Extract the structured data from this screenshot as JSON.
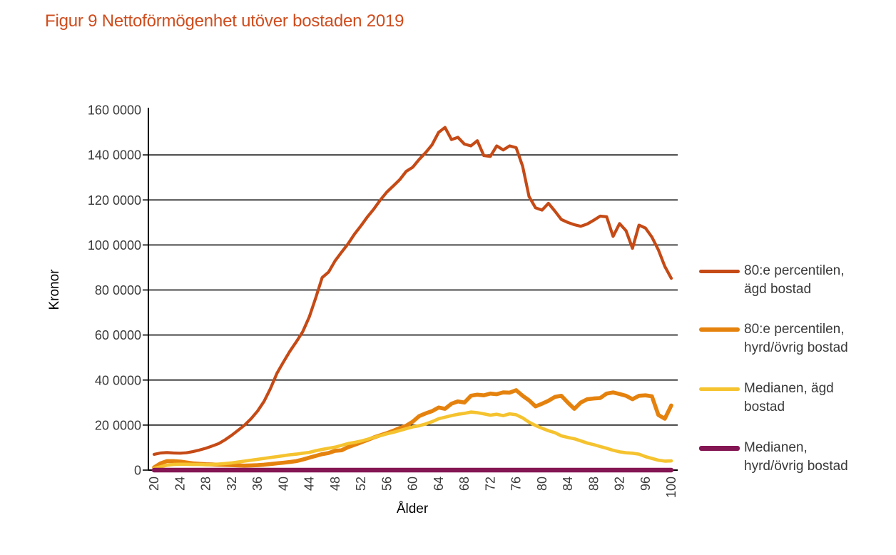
{
  "title": "Figur 9 Nettoförmögenhet utöver bostaden 2019",
  "colors": {
    "title": "#d04c1d",
    "text": "#3a3a3b",
    "axis": "#000000",
    "p80_agd": "#c54a16",
    "p80_hyrd": "#e5820e",
    "median_agd": "#f5c32f",
    "median_hyrd": "#841653"
  },
  "chart_data": {
    "type": "line",
    "title": "Figur 9 Nettoförmögenhet utöver bostaden 2019",
    "xlabel": "Ålder",
    "ylabel": "Kronor",
    "xlim": [
      20,
      100
    ],
    "ylim": [
      0,
      1600000
    ],
    "grid": "horizontal gridlines at every 200000, none at 1600000",
    "legend_position": "right",
    "x_ticks": [
      20,
      24,
      28,
      32,
      36,
      40,
      44,
      48,
      52,
      56,
      60,
      64,
      68,
      72,
      76,
      80,
      84,
      88,
      92,
      96,
      100
    ],
    "y_ticks": [
      {
        "value": 0,
        "label": "0"
      },
      {
        "value": 200000,
        "label": "20 0000"
      },
      {
        "value": 400000,
        "label": "40 0000"
      },
      {
        "value": 600000,
        "label": "60 0000"
      },
      {
        "value": 800000,
        "label": "80 0000"
      },
      {
        "value": 1000000,
        "label": "100 0000"
      },
      {
        "value": 1200000,
        "label": "120 0000"
      },
      {
        "value": 1400000,
        "label": "140 0000"
      },
      {
        "value": 1600000,
        "label": "160 0000"
      }
    ],
    "x": [
      20,
      21,
      22,
      23,
      24,
      25,
      26,
      27,
      28,
      29,
      30,
      31,
      32,
      33,
      34,
      35,
      36,
      37,
      38,
      39,
      40,
      41,
      42,
      43,
      44,
      45,
      46,
      47,
      48,
      49,
      50,
      51,
      52,
      53,
      54,
      55,
      56,
      57,
      58,
      59,
      60,
      61,
      62,
      63,
      64,
      65,
      66,
      67,
      68,
      69,
      70,
      71,
      72,
      73,
      74,
      75,
      76,
      77,
      78,
      79,
      80,
      81,
      82,
      83,
      84,
      85,
      86,
      87,
      88,
      89,
      90,
      91,
      92,
      93,
      94,
      95,
      96,
      97,
      98,
      99,
      100
    ],
    "series": [
      {
        "id": "p80-agd",
        "name": "80:e percentilen, ägd bostad",
        "legend_lines": [
          "80:e percentilen,",
          "ägd bostad"
        ],
        "color": "#c54a16",
        "width": 4.2,
        "values": [
          70000,
          76000,
          78000,
          76000,
          75000,
          77000,
          82000,
          89000,
          97000,
          107000,
          118000,
          135000,
          155000,
          177000,
          200000,
          228000,
          262000,
          305000,
          362000,
          430000,
          480000,
          528000,
          570000,
          615000,
          680000,
          765000,
          855000,
          880000,
          930000,
          968000,
          1005000,
          1048000,
          1085000,
          1125000,
          1160000,
          1200000,
          1235000,
          1262000,
          1290000,
          1327000,
          1345000,
          1380000,
          1410000,
          1445000,
          1500000,
          1522000,
          1468000,
          1478000,
          1448000,
          1440000,
          1463000,
          1397000,
          1393000,
          1440000,
          1422000,
          1440000,
          1432000,
          1350000,
          1215000,
          1165000,
          1155000,
          1185000,
          1150000,
          1113000,
          1100000,
          1090000,
          1083000,
          1093000,
          1110000,
          1128000,
          1125000,
          1038000,
          1095000,
          1063000,
          985000,
          1088000,
          1075000,
          1035000,
          978000,
          905000,
          852000
        ]
      },
      {
        "id": "p80-hyrd",
        "name": "80:e percentilen, hyrd/övrig bostad",
        "legend_lines": [
          "80:e percentilen,",
          "hyrd/övrig bostad"
        ],
        "color": "#e5820e",
        "width": 5.6,
        "values": [
          12000,
          30000,
          40000,
          40000,
          38000,
          34000,
          30000,
          28000,
          26000,
          25000,
          24000,
          23000,
          22000,
          21000,
          20000,
          21000,
          22000,
          24000,
          27000,
          30000,
          33000,
          36000,
          40000,
          47000,
          55000,
          63000,
          71000,
          76000,
          86000,
          88000,
          102000,
          112000,
          123000,
          134000,
          145000,
          155000,
          164000,
          175000,
          187000,
          197000,
          215000,
          240000,
          252000,
          262000,
          278000,
          272000,
          295000,
          305000,
          300000,
          330000,
          335000,
          332000,
          340000,
          337000,
          345000,
          344000,
          355000,
          330000,
          310000,
          283000,
          295000,
          308000,
          325000,
          330000,
          300000,
          272000,
          300000,
          315000,
          318000,
          320000,
          340000,
          345000,
          338000,
          330000,
          315000,
          330000,
          332000,
          328000,
          245000,
          228000,
          287000
        ]
      },
      {
        "id": "median-agd",
        "name": "Medianen, ägd bostad",
        "legend_lines": [
          "Medianen, ägd",
          "bostad"
        ],
        "color": "#f5c32f",
        "width": 4.6,
        "values": [
          8000,
          15000,
          22000,
          25000,
          26000,
          26000,
          25000,
          25000,
          24000,
          25000,
          27000,
          29000,
          32000,
          36000,
          40000,
          44000,
          48000,
          52000,
          56000,
          60000,
          64000,
          68000,
          71000,
          75000,
          79000,
          86000,
          92000,
          97000,
          102000,
          110000,
          118000,
          123000,
          129000,
          137000,
          145000,
          153000,
          161000,
          168000,
          176000,
          184000,
          192000,
          197000,
          205000,
          215000,
          228000,
          235000,
          242000,
          248000,
          252000,
          258000,
          255000,
          250000,
          244000,
          248000,
          242000,
          250000,
          246000,
          232000,
          213000,
          198000,
          186000,
          175000,
          166000,
          152000,
          145000,
          139000,
          130000,
          120000,
          113000,
          105000,
          97000,
          88000,
          81000,
          77000,
          75000,
          71000,
          60000,
          52000,
          44000,
          40000,
          41000
        ]
      },
      {
        "id": "median-hyrd",
        "name": "Medianen, hyrd/övrig bostad",
        "legend_lines": [
          "Medianen,",
          "hyrd/övrig bostad"
        ],
        "color": "#841653",
        "width": 6.5,
        "values": [
          0,
          0,
          0,
          0,
          0,
          0,
          0,
          0,
          0,
          0,
          0,
          0,
          0,
          0,
          0,
          0,
          0,
          0,
          0,
          0,
          0,
          0,
          0,
          0,
          0,
          0,
          0,
          0,
          0,
          0,
          0,
          0,
          0,
          0,
          0,
          0,
          0,
          0,
          0,
          0,
          0,
          0,
          0,
          0,
          0,
          0,
          0,
          0,
          0,
          0,
          0,
          0,
          0,
          0,
          0,
          0,
          0,
          0,
          0,
          0,
          0,
          0,
          0,
          0,
          0,
          0,
          0,
          0,
          0,
          0,
          0,
          0,
          0,
          0,
          0,
          0,
          0,
          0,
          0,
          0,
          0
        ]
      }
    ]
  }
}
